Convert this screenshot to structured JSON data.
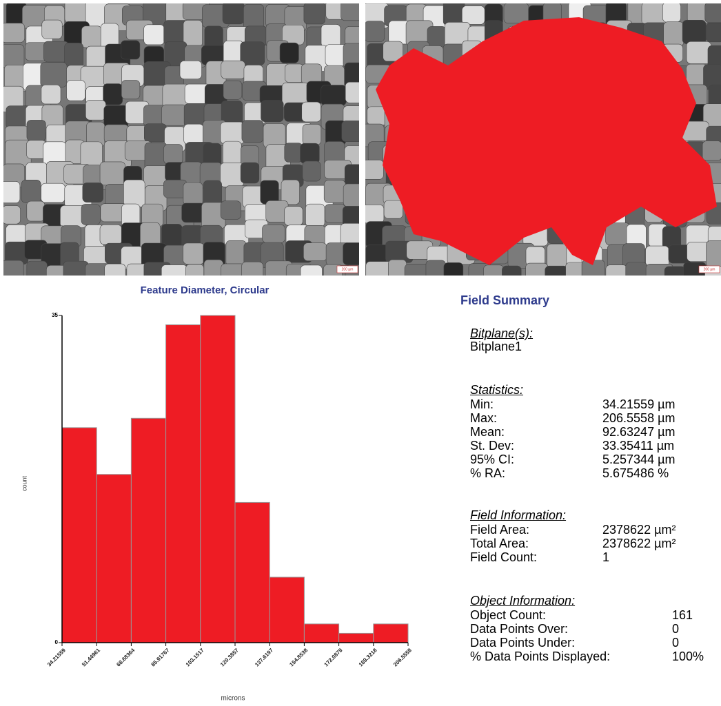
{
  "images": {
    "scale_bar": "200 µm"
  },
  "chart_data": {
    "type": "histogram",
    "title": "Feature Diameter, Circular",
    "x_label": "microns",
    "y_label": "count",
    "bins": [
      34.21559,
      51.44961,
      68.68364,
      85.91767,
      103.1517,
      120.3857,
      137.6197,
      154.8538,
      172.0878,
      189.3218,
      206.5558
    ],
    "counts": [
      23,
      18,
      24,
      34,
      35,
      15,
      7,
      2,
      1,
      2
    ],
    "color": "#ee1c24",
    "xlim": [
      34.21559,
      206.5558
    ],
    "xticks": [
      34.21559,
      51.44961,
      68.68364,
      85.91767,
      103.1517,
      120.3857,
      137.6197,
      154.8538,
      172.0878,
      189.3218,
      206.5558
    ],
    "ylim": [
      0,
      35
    ],
    "yticks": [
      0,
      35
    ]
  },
  "field_summary": {
    "title": "Field Summary",
    "sections": [
      {
        "heading": "Bitplane(s):",
        "lines": [
          "Bitplane1"
        ]
      },
      {
        "heading": "Statistics:",
        "rows": [
          [
            "Min:",
            "34.21559 µm"
          ],
          [
            "Max:",
            "206.5558 µm"
          ],
          [
            "Mean:",
            "92.63247 µm"
          ],
          [
            "St. Dev:",
            "33.35411 µm"
          ],
          [
            "95% CI:",
            "5.257344 µm"
          ],
          [
            "% RA:",
            "5.675486 %"
          ]
        ]
      },
      {
        "heading": "Field Information:",
        "rows": [
          [
            "Field Area:",
            "2378622 µm²"
          ],
          [
            "Total Area:",
            "2378622 µm²"
          ],
          [
            "Field Count:",
            "1"
          ]
        ]
      },
      {
        "heading": "Object Information:",
        "rows": [
          [
            "Object Count:",
            "161"
          ],
          [
            "Data Points Over:",
            "0"
          ],
          [
            "Data Points Under:",
            "0"
          ],
          [
            "% Data Points Displayed:",
            "100%"
          ]
        ]
      }
    ]
  }
}
